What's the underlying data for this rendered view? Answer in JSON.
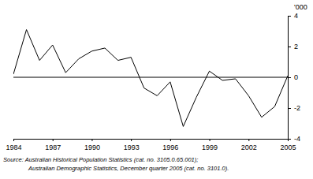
{
  "chart_data": {
    "type": "line",
    "y_label": "'000",
    "x": [
      1984,
      1985,
      1986,
      1987,
      1988,
      1989,
      1990,
      1991,
      1992,
      1993,
      1994,
      1995,
      1996,
      1997,
      1998,
      1999,
      2000,
      2001,
      2002,
      2003,
      2004,
      2005
    ],
    "values": [
      0.2,
      3.1,
      1.1,
      2.1,
      0.3,
      1.2,
      1.7,
      1.9,
      1.1,
      1.3,
      -0.7,
      -1.2,
      -0.3,
      -3.2,
      -1.3,
      0.4,
      -0.2,
      -0.1,
      -1.2,
      -2.6,
      -1.9,
      0.1
    ],
    "color": "#000000",
    "xlim": [
      1984,
      2005
    ],
    "xticks": [
      1984,
      1987,
      1990,
      1993,
      1996,
      1999,
      2002,
      2005
    ],
    "ylim": [
      -4,
      4
    ],
    "yticks": [
      -4,
      -2,
      0,
      2,
      4
    ],
    "annotations": [
      "Source: Australian Historical Population Statistics (cat. no. 3105.0.65.001);",
      "Australian Demographic Statistics, December quarter 2005 (cat. no. 3101.0)."
    ]
  }
}
